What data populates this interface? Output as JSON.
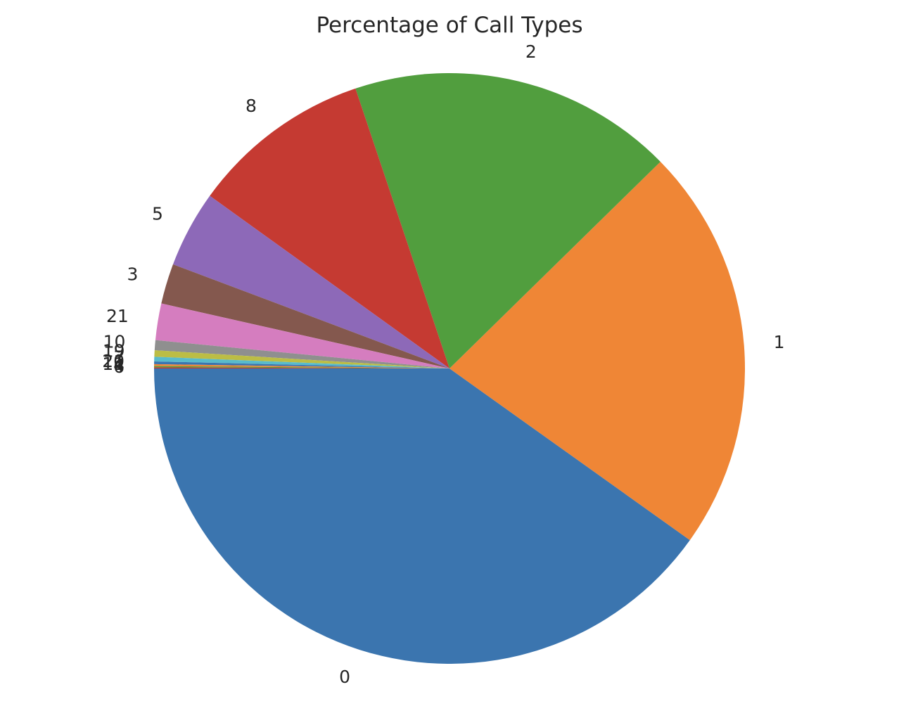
{
  "chart_data": {
    "type": "pie",
    "title": "Percentage of Call Types",
    "start_angle_deg": 180,
    "direction": "counterclockwise",
    "slices": [
      {
        "label": "0",
        "value": 40.1,
        "color": "#3b75af"
      },
      {
        "label": "1",
        "value": 22.2,
        "color": "#ef8636"
      },
      {
        "label": "2",
        "value": 17.8,
        "color": "#519e3e"
      },
      {
        "label": "8",
        "value": 9.9,
        "color": "#c53a32"
      },
      {
        "label": "5",
        "value": 4.2,
        "color": "#8d69b8"
      },
      {
        "label": "3",
        "value": 2.2,
        "color": "#84584e"
      },
      {
        "label": "21",
        "value": 2.0,
        "color": "#d57dbf"
      },
      {
        "label": "10",
        "value": 0.55,
        "color": "#8f8f8f"
      },
      {
        "label": "19",
        "value": 0.35,
        "color": "#bcbd45"
      },
      {
        "label": "7",
        "value": 0.25,
        "color": "#58bbcc"
      },
      {
        "label": "20",
        "value": 0.15,
        "color": "#3b75af"
      },
      {
        "label": "11",
        "value": 0.1,
        "color": "#ef8636"
      },
      {
        "label": "4",
        "value": 0.07,
        "color": "#519e3e"
      },
      {
        "label": "6",
        "value": 0.06,
        "color": "#c53a32"
      }
    ]
  }
}
